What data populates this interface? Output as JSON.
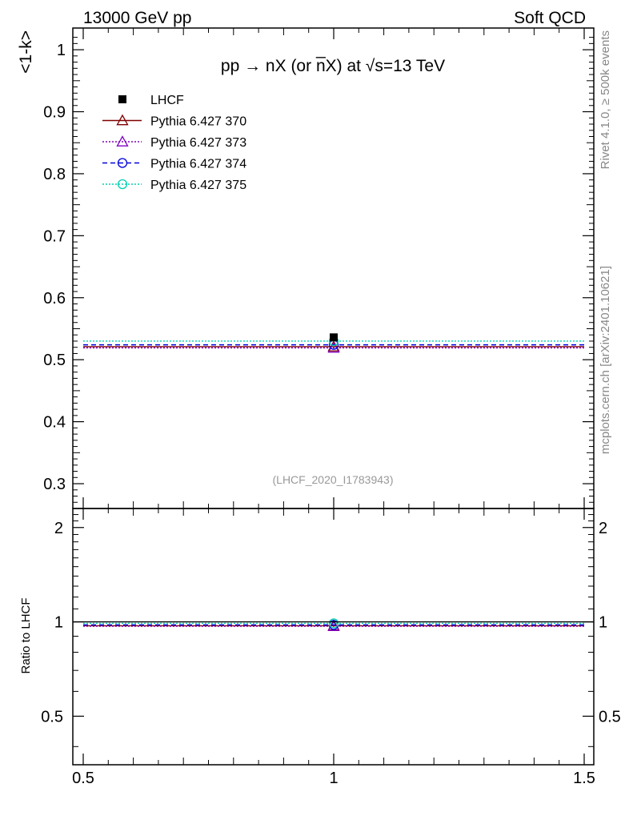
{
  "header": {
    "left": "13000 GeV pp",
    "right": "Soft QCD"
  },
  "side_labels": {
    "rivet": "Rivet 4.1.0, ≥ 500k events",
    "mcplots": "mcplots.cern.ch [arXiv:2401.10621]"
  },
  "chart_data": {
    "type": "scatter",
    "title": "pp → nX (or n̅X) at √s=13 TeV",
    "analysis_tag": "(LHCF_2020_I1783943)",
    "xlabel": "",
    "ylabel": "<1-k>",
    "ratio_ylabel": "Ratio to LHCF",
    "xlim": [
      0.5,
      1.5
    ],
    "ylim": [
      0.26,
      1.035
    ],
    "ratio_ylim": [
      0.35,
      2.3
    ],
    "x_ticks": [
      "0.5",
      "1",
      "1.5"
    ],
    "y_ticks": [
      "0.3",
      "0.4",
      "0.5",
      "0.6",
      "0.7",
      "0.8",
      "0.9",
      "1"
    ],
    "ratio_y_ticks": [
      "0.5",
      "1",
      "2"
    ],
    "legend_position": "top-left",
    "series": [
      {
        "name": "LHCF",
        "kind": "data",
        "marker": "square-filled",
        "color": "#000000",
        "x": 1.0,
        "y": 0.536,
        "yerr": 0.004,
        "ratio": 1.0
      },
      {
        "name": "Pythia 6.427 370",
        "kind": "mc",
        "marker": "triangle-open",
        "line": "solid",
        "color": "#800000",
        "x": 1.0,
        "y": 0.521,
        "ratio": 0.972
      },
      {
        "name": "Pythia 6.427 373",
        "kind": "mc",
        "marker": "triangle-open",
        "line": "dotted",
        "color": "#8000c0",
        "x": 1.0,
        "y": 0.519,
        "ratio": 0.968
      },
      {
        "name": "Pythia 6.427 374",
        "kind": "mc",
        "marker": "circle-open",
        "line": "dashed",
        "color": "#0000e0",
        "x": 1.0,
        "y": 0.524,
        "ratio": 0.978
      },
      {
        "name": "Pythia 6.427 375",
        "kind": "mc",
        "marker": "circle-open",
        "line": "dotted",
        "color": "#00d0b0",
        "x": 1.0,
        "y": 0.53,
        "ratio": 0.989
      }
    ]
  }
}
